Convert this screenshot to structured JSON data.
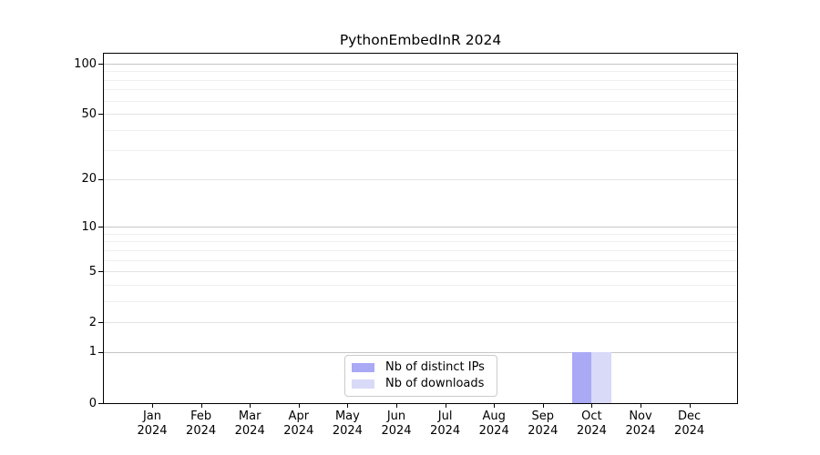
{
  "chart_data": {
    "type": "bar",
    "title": "PythonEmbedInR 2024",
    "year_label": "2024",
    "categories": [
      "Jan",
      "Feb",
      "Mar",
      "Apr",
      "May",
      "Jun",
      "Jul",
      "Aug",
      "Sep",
      "Oct",
      "Nov",
      "Dec"
    ],
    "series": [
      {
        "name": "Nb of distinct IPs",
        "color": "#a9a9f6",
        "values": [
          0,
          0,
          0,
          0,
          0,
          0,
          0,
          0,
          0,
          1,
          0,
          0
        ]
      },
      {
        "name": "Nb of downloads",
        "color": "#d9d9f8",
        "values": [
          0,
          0,
          0,
          0,
          0,
          0,
          0,
          0,
          0,
          1,
          0,
          0
        ]
      }
    ],
    "xlabel": "",
    "ylabel": "",
    "yscale": "log1p",
    "ylim": [
      0,
      115
    ],
    "yticks": [
      0,
      1,
      2,
      5,
      10,
      20,
      50,
      100
    ],
    "yticks_decade": [
      1,
      10,
      100
    ],
    "yticks_minor": [
      3,
      4,
      6,
      7,
      8,
      9,
      30,
      40,
      60,
      70,
      80,
      90
    ],
    "grid": "horizontal",
    "legend_position": "lower-center-inside"
  },
  "colors": {
    "grid_major": "#c6c6c6",
    "grid_mid": "#e3e3e3",
    "grid_minor": "#efefef",
    "spine": "#000000",
    "background": "#ffffff",
    "text": "#000000"
  }
}
